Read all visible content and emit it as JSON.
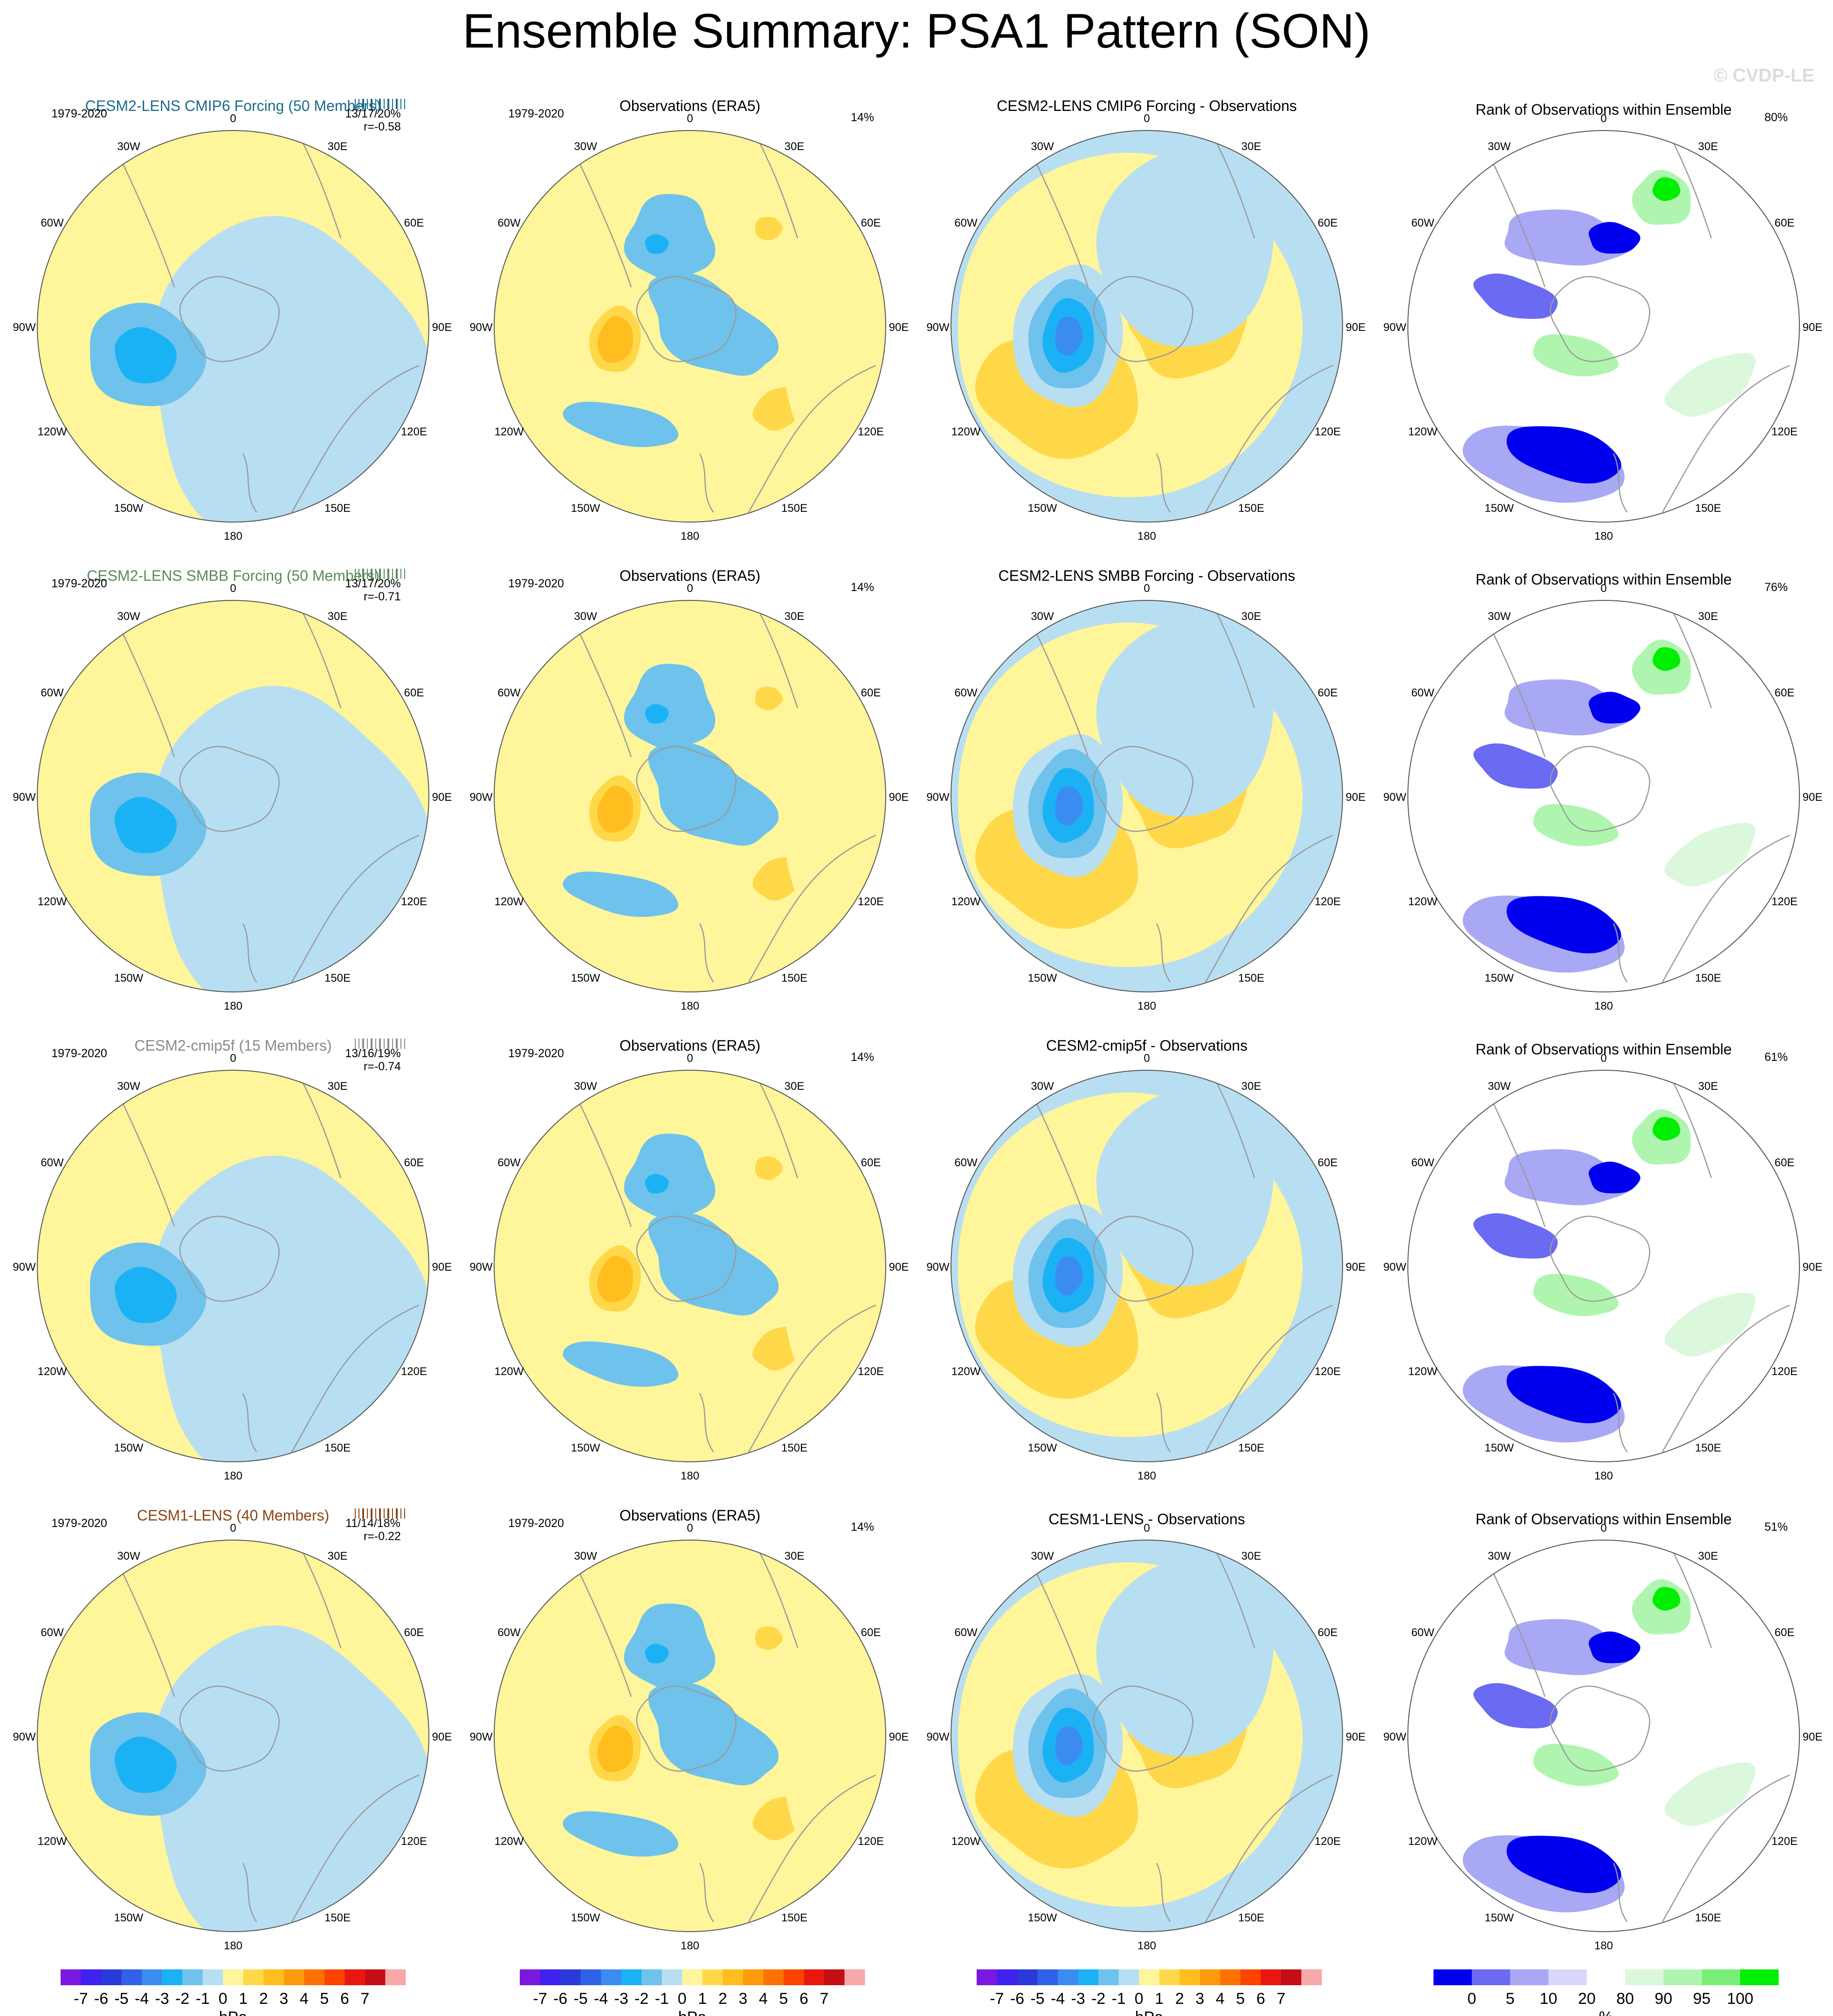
{
  "title": "Ensemble Summary: PSA1 Pattern (SON)",
  "watermark": "© CVDP-LE",
  "colors": {
    "bg": "#ffffff",
    "land": "#9a9a9a",
    "ring": "#c8c8c8",
    "row_title_colors": [
      "#1a6b8a",
      "#5b8a5b",
      "#8a8a8a",
      "#8b4513"
    ]
  },
  "shared": {
    "obs_title": "Observations (ERA5)",
    "rank_title": "Rank of Observations within Ensemble",
    "period": "1979-2020",
    "obs_pct": "14%",
    "lon_labels": [
      "0",
      "30E",
      "60E",
      "90E",
      "120E",
      "150E",
      "180",
      "150W",
      "120W",
      "90W",
      "60W",
      "30W"
    ]
  },
  "chart_data": [
    {
      "type": "heatmap",
      "projection": "south-polar-stereographic",
      "units": "hPa",
      "rows": [
        {
          "model_title": "CESM2-LENS CMIP6 Forcing (50 Members)",
          "diff_title": "CESM2-LENS CMIP6 Forcing - Observations",
          "stats": "13/17/20%",
          "corr": "r=-0.58",
          "rank_pct": "80%"
        },
        {
          "model_title": "CESM2-LENS SMBB Forcing (50 Members)",
          "diff_title": "CESM2-LENS SMBB Forcing - Observations",
          "stats": "13/17/20%",
          "corr": "r=-0.71",
          "rank_pct": "76%"
        },
        {
          "model_title": "CESM2-cmip5f (15 Members)",
          "diff_title": "CESM2-cmip5f - Observations",
          "stats": "13/16/19%",
          "corr": "r=-0.74",
          "rank_pct": "61%"
        },
        {
          "model_title": "CESM1-LENS (40 Members)",
          "diff_title": "CESM1-LENS - Observations",
          "stats": "11/14/18%",
          "corr": "r=-0.22",
          "rank_pct": "51%"
        }
      ]
    }
  ],
  "colorbars": {
    "anomaly": {
      "labels": [
        "-7",
        "-6",
        "-5",
        "-4",
        "-3",
        "-2",
        "-1",
        "0",
        "1",
        "2",
        "3",
        "4",
        "5",
        "6",
        "7"
      ],
      "unit": "hPa",
      "colors": [
        "#7a18e0",
        "#3f22f0",
        "#2a3ad8",
        "#2f62e6",
        "#3b8cf0",
        "#1ab2f5",
        "#6ec2ec",
        "#b8def2",
        "#fff59a",
        "#ffd84a",
        "#ffbe1e",
        "#ff9a0a",
        "#ff7200",
        "#ff4400",
        "#e81810",
        "#c20e14",
        "#f7a8a8"
      ]
    },
    "rank": {
      "labels": [
        "0",
        "5",
        "10",
        "20",
        "80",
        "90",
        "95",
        "100"
      ],
      "unit": "%",
      "colors": [
        "#0000ee",
        "#6a6af2",
        "#a8a8f5",
        "#d8d8fa",
        "#ffffff",
        "#dcf8dc",
        "#aff5af",
        "#78ef78",
        "#00ee00"
      ]
    }
  }
}
